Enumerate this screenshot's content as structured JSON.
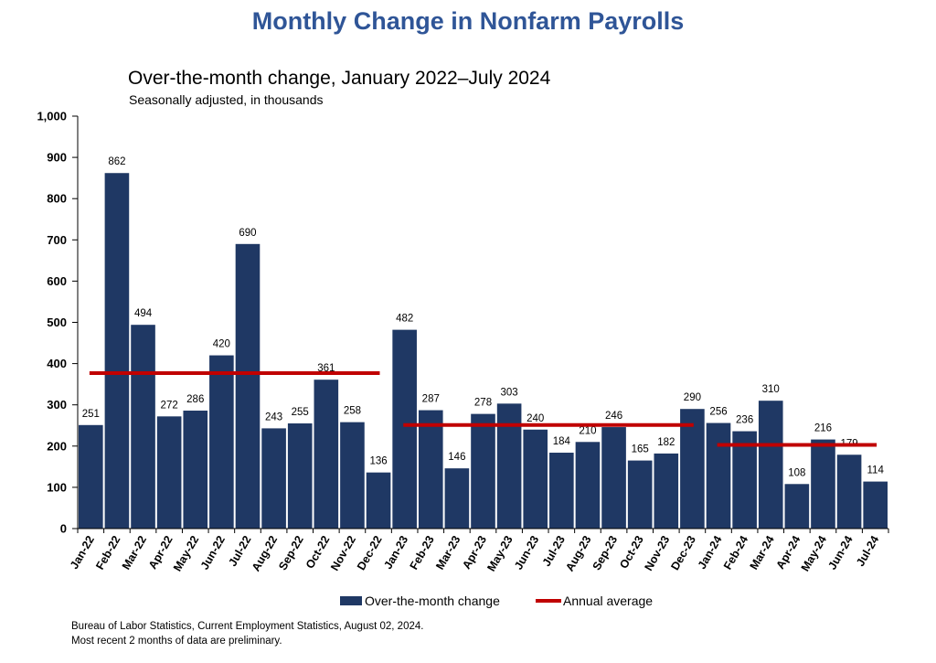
{
  "header": {
    "title": "Monthly Change in Nonfarm Payrolls"
  },
  "footer": {
    "source": "Bureau of Labor Statistics, Current Employment Statistics, August 02, 2024.",
    "note": "Most recent 2 months of data are preliminary."
  },
  "chart_data": {
    "type": "bar",
    "title": "Over-the-month change, January 2022–July 2024",
    "subtitle": "Seasonally adjusted, in thousands",
    "xlabel": "",
    "ylabel": "",
    "ylim": [
      0,
      1000
    ],
    "yticks": [
      0,
      100,
      200,
      300,
      400,
      500,
      600,
      700,
      800,
      900,
      1000
    ],
    "ytick_labels": [
      "0",
      "100",
      "200",
      "300",
      "400",
      "500",
      "600",
      "700",
      "800",
      "900",
      "1,000"
    ],
    "categories": [
      "Jan-22",
      "Feb-22",
      "Mar-22",
      "Apr-22",
      "May-22",
      "Jun-22",
      "Jul-22",
      "Aug-22",
      "Sep-22",
      "Oct-22",
      "Nov-22",
      "Dec-22",
      "Jan-23",
      "Feb-23",
      "Mar-23",
      "Apr-23",
      "May-23",
      "Jun-23",
      "Jul-23",
      "Aug-23",
      "Sep-23",
      "Oct-23",
      "Nov-23",
      "Dec-23",
      "Jan-24",
      "Feb-24",
      "Mar-24",
      "Apr-24",
      "May-24",
      "Jun-24",
      "Jul-24"
    ],
    "series": [
      {
        "name": "Over-the-month change",
        "color": "#1f3864",
        "values": [
          251,
          862,
          494,
          272,
          286,
          420,
          690,
          243,
          255,
          361,
          258,
          136,
          482,
          287,
          146,
          278,
          303,
          240,
          184,
          210,
          246,
          165,
          182,
          290,
          256,
          236,
          310,
          108,
          216,
          179,
          114
        ]
      }
    ],
    "annual_average": {
      "name": "Annual average",
      "color": "#c00000",
      "segments": [
        {
          "start": "Jan-22",
          "end": "Dec-22",
          "value": 377
        },
        {
          "start": "Jan-23",
          "end": "Dec-23",
          "value": 251
        },
        {
          "start": "Jan-24",
          "end": "Jul-24",
          "value": 203
        }
      ]
    },
    "grid": false,
    "legend": "bottom"
  }
}
